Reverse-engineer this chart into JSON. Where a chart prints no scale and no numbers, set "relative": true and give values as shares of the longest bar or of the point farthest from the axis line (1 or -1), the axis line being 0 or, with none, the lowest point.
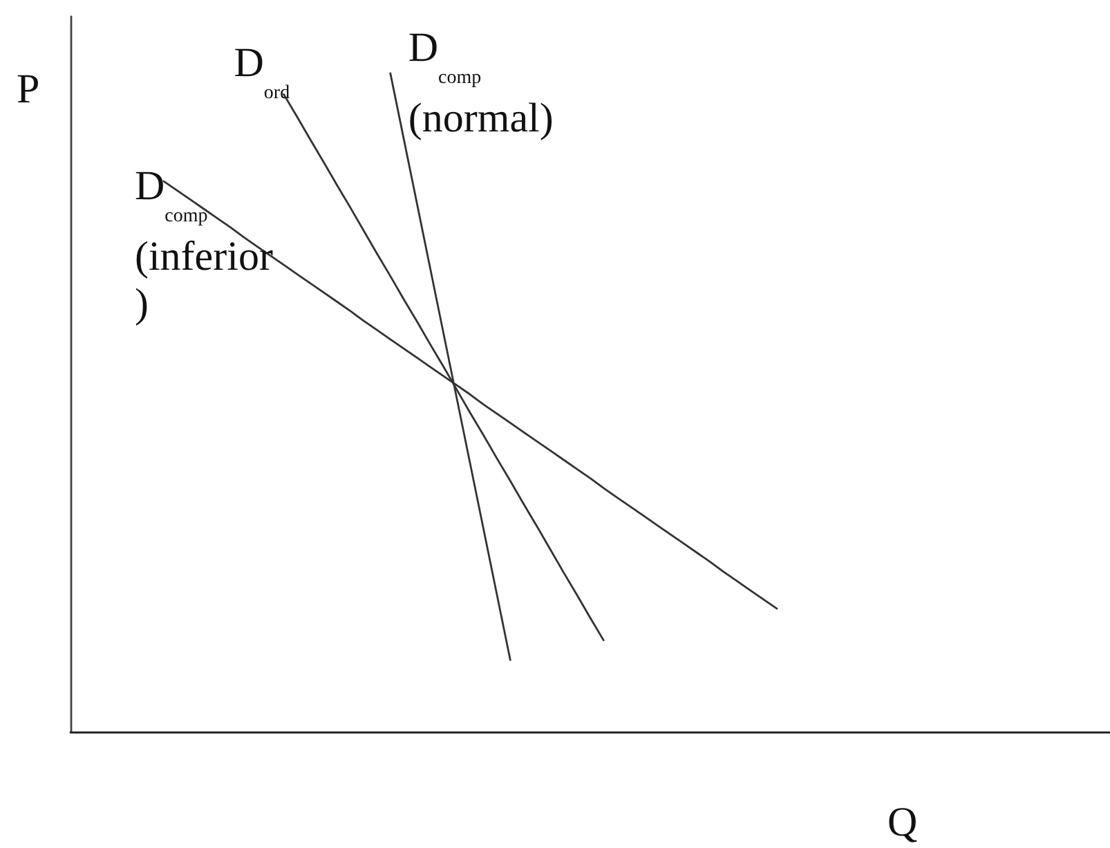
{
  "chart_data": {
    "type": "line",
    "relative": true,
    "xlabel": "Q",
    "ylabel": "P",
    "tick_labels": false,
    "categories": [
      null,
      null,
      null,
      null,
      null,
      null,
      null,
      null,
      null,
      null,
      null,
      null,
      null,
      null,
      null,
      null,
      null,
      null,
      null,
      null,
      null,
      null,
      null,
      null,
      null,
      null,
      null,
      null,
      null,
      null,
      null,
      null,
      null,
      null,
      null,
      null,
      null,
      null,
      null,
      null,
      null,
      null,
      null,
      null,
      null,
      null,
      null,
      null,
      null,
      null,
      null,
      null,
      null,
      null,
      null,
      null,
      null,
      null,
      null,
      null,
      null,
      null,
      null,
      null,
      null,
      null,
      null,
      null,
      null,
      null,
      null,
      null,
      null,
      null,
      null,
      null,
      null,
      null,
      null
    ],
    "series": [
      {
        "name": "D$_{comp}$ (inferior)",
        "color": "#333333",
        "values": [
          null,
          null,
          null,
          null,
          null,
          null,
          null,
          0.836,
          0.822,
          0.808,
          0.794,
          0.78,
          0.766,
          0.751,
          0.737,
          0.723,
          0.709,
          0.695,
          0.681,
          0.667,
          0.653,
          0.639,
          0.624,
          0.61,
          0.596,
          0.582,
          0.568,
          0.554,
          0.54,
          0.526,
          0.512,
          0.497,
          0.483,
          0.469,
          0.455,
          0.441,
          0.427,
          0.413,
          0.399,
          0.385,
          0.37,
          0.356,
          0.342,
          0.328,
          0.314,
          0.3,
          0.286,
          0.272,
          0.258,
          0.243,
          0.229,
          0.215,
          0.201,
          0.187,
          null,
          null,
          null,
          null,
          null,
          null,
          null,
          null,
          null,
          null,
          null,
          null,
          null,
          null,
          null,
          null,
          null,
          null,
          null,
          null,
          null,
          null,
          null,
          null,
          null
        ]
      },
      {
        "name": "D$_{ord}$",
        "color": "#333333",
        "values": [
          null,
          null,
          null,
          null,
          null,
          null,
          null,
          null,
          null,
          null,
          null,
          null,
          null,
          null,
          null,
          null,
          0.968,
          0.934,
          0.899,
          0.865,
          0.83,
          0.796,
          0.761,
          0.726,
          0.692,
          0.657,
          0.623,
          0.588,
          0.554,
          0.519,
          0.484,
          0.45,
          0.415,
          0.381,
          0.346,
          0.312,
          0.277,
          0.242,
          0.208,
          0.173,
          0.139,
          null,
          null,
          null,
          null,
          null,
          null,
          null,
          null,
          null,
          null,
          null,
          null,
          null,
          null,
          null,
          null,
          null,
          null,
          null,
          null,
          null,
          null,
          null,
          null,
          null,
          null,
          null,
          null,
          null,
          null,
          null,
          null,
          null,
          null,
          null,
          null,
          null,
          null
        ]
      },
      {
        "name": "D$_{comp}$ (normal)",
        "color": "#333333",
        "values": [
          null,
          null,
          null,
          null,
          null,
          null,
          null,
          null,
          null,
          null,
          null,
          null,
          null,
          null,
          null,
          null,
          null,
          null,
          null,
          null,
          null,
          null,
          null,
          null,
          1,
          0.901,
          0.802,
          0.703,
          0.604,
          0.505,
          0.406,
          0.307,
          0.208,
          0.109,
          null,
          null,
          null,
          null,
          null,
          null,
          null,
          null,
          null,
          null,
          null,
          null,
          null,
          null,
          null,
          null,
          null,
          null,
          null,
          null,
          null,
          null,
          null,
          null,
          null,
          null,
          null,
          null,
          null,
          null,
          null,
          null,
          null,
          null,
          null,
          null,
          null,
          null,
          null,
          null,
          null,
          null,
          null,
          null,
          null
        ]
      }
    ]
  }
}
